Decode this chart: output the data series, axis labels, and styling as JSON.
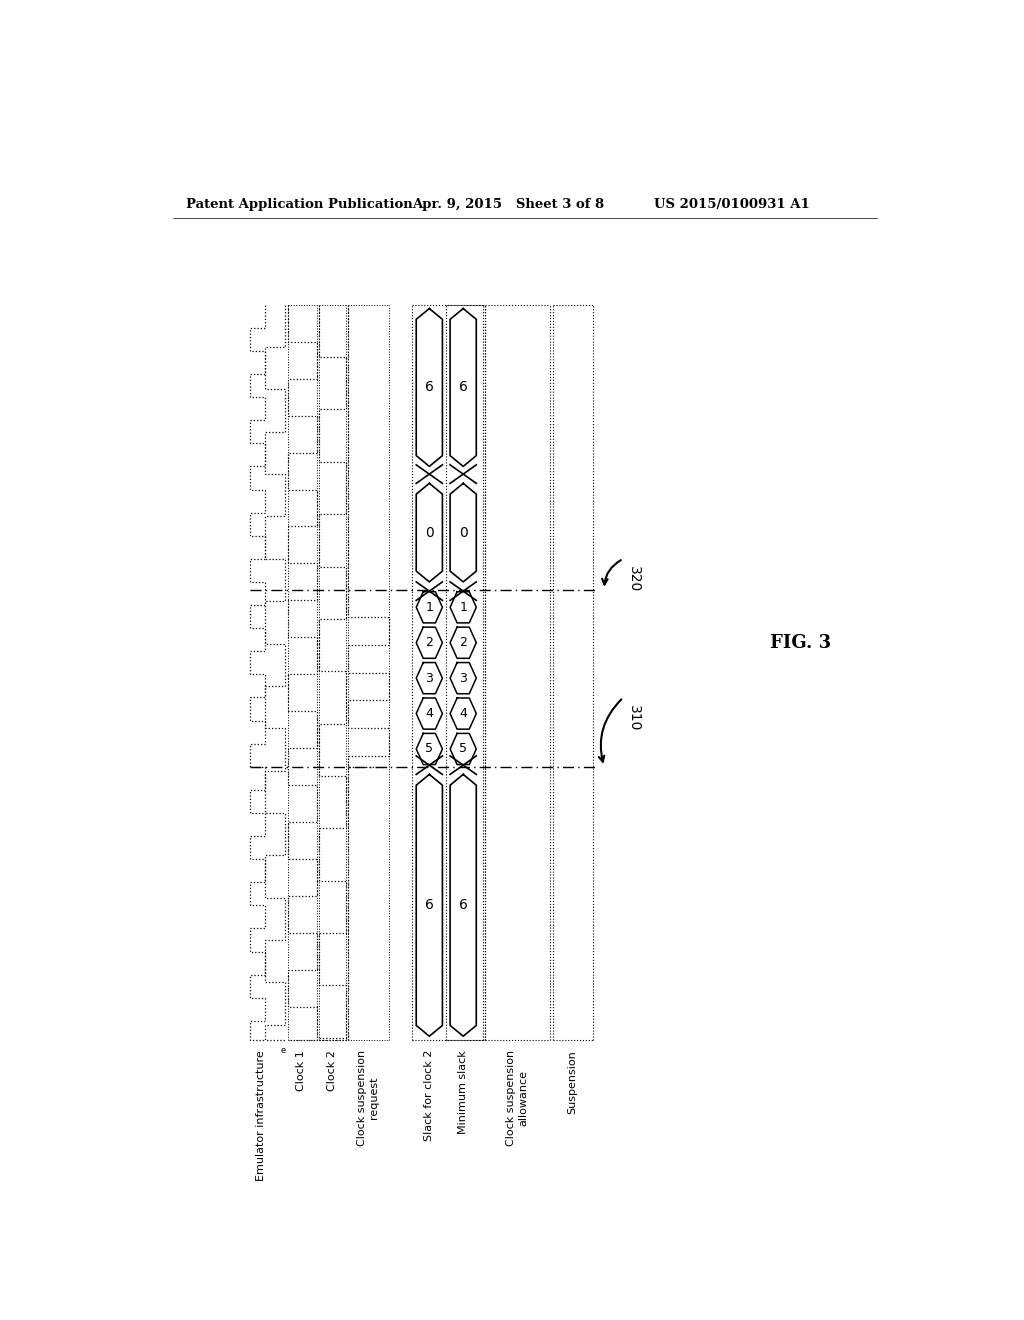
{
  "title_left": "Patent Application Publication",
  "title_mid": "Apr. 9, 2015   Sheet 3 of 8",
  "title_right": "US 2015/0100931 A1",
  "fig_label": "FIG. 3",
  "label_320": "320",
  "label_310": "310",
  "legend_items": [
    "Emulator infrastructure",
    "Clock 1",
    "Clock 2",
    "Clock suspension\nrequest",
    "Slack for clock 2",
    "Minimum slack",
    "Clock suspension\nallowance",
    "Suspension"
  ],
  "bg_color": "#ffffff",
  "line_color": "#000000"
}
